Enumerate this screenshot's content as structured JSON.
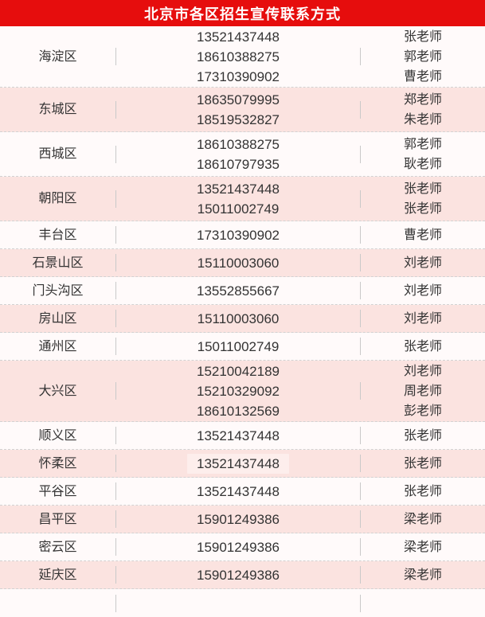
{
  "header": {
    "title": "北京市各区招生宣传联系方式"
  },
  "table": {
    "rows": [
      {
        "district": "海淀区",
        "phones": [
          "13521437448",
          "18610388275",
          "17310390902"
        ],
        "teachers": [
          "张老师",
          "郭老师",
          "曹老师"
        ]
      },
      {
        "district": "东城区",
        "phones": [
          "18635079995",
          "18519532827"
        ],
        "teachers": [
          "郑老师",
          "朱老师"
        ]
      },
      {
        "district": "西城区",
        "phones": [
          "18610388275",
          "18610797935"
        ],
        "teachers": [
          "郭老师",
          "耿老师"
        ]
      },
      {
        "district": "朝阳区",
        "phones": [
          "13521437448",
          "15011002749"
        ],
        "teachers": [
          "张老师",
          "张老师"
        ]
      },
      {
        "district": "丰台区",
        "phones": [
          "17310390902"
        ],
        "teachers": [
          "曹老师"
        ]
      },
      {
        "district": "石景山区",
        "phones": [
          "15110003060"
        ],
        "teachers": [
          "刘老师"
        ]
      },
      {
        "district": "门头沟区",
        "phones": [
          "13552855667"
        ],
        "teachers": [
          "刘老师"
        ]
      },
      {
        "district": "房山区",
        "phones": [
          "15110003060"
        ],
        "teachers": [
          "刘老师"
        ]
      },
      {
        "district": "通州区",
        "phones": [
          "15011002749"
        ],
        "teachers": [
          "张老师"
        ]
      },
      {
        "district": "大兴区",
        "phones": [
          "15210042189",
          "15210329092",
          "18610132569"
        ],
        "teachers": [
          "刘老师",
          "周老师",
          "彭老师"
        ]
      },
      {
        "district": "顺义区",
        "phones": [
          "13521437448"
        ],
        "teachers": [
          "张老师"
        ]
      },
      {
        "district": "怀柔区",
        "phones": [
          "13521437448"
        ],
        "teachers": [
          "张老师"
        ],
        "phone_highlight": true
      },
      {
        "district": "平谷区",
        "phones": [
          "13521437448"
        ],
        "teachers": [
          "张老师"
        ]
      },
      {
        "district": "昌平区",
        "phones": [
          "15901249386"
        ],
        "teachers": [
          "梁老师"
        ]
      },
      {
        "district": "密云区",
        "phones": [
          "15901249386"
        ],
        "teachers": [
          "梁老师"
        ]
      },
      {
        "district": "延庆区",
        "phones": [
          "15901249386"
        ],
        "teachers": [
          "梁老师"
        ]
      },
      {
        "district": "",
        "phones": [],
        "teachers": []
      }
    ]
  },
  "colors": {
    "header_bg": "#e60d0d",
    "header_text": "#ffffff",
    "row_pink": "#fbe3e0",
    "row_white": "#fffafa",
    "text": "#333333",
    "divider": "#c9c9c9",
    "dashed_border": "#d2d2d2",
    "phone_highlight_bg": "#fdeeec"
  }
}
